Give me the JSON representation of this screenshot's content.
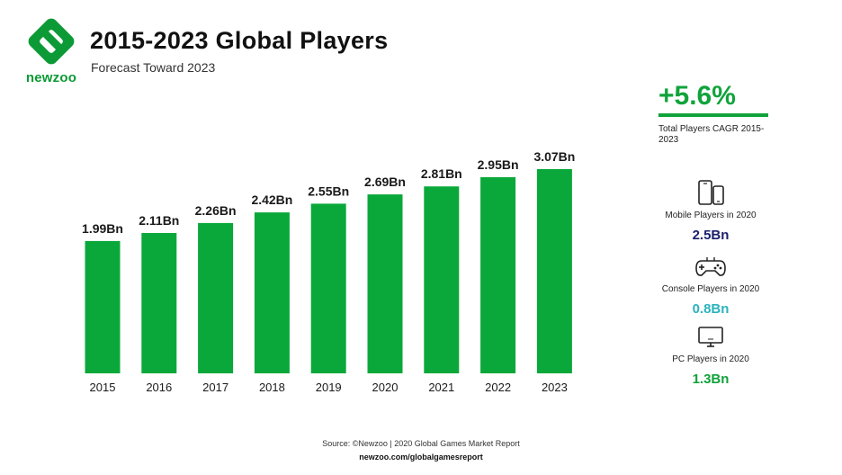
{
  "brand": {
    "name": "newzoo",
    "color": "#0c9a36"
  },
  "header": {
    "title": "2015-2023 Global Players",
    "subtitle": "Forecast Toward 2023"
  },
  "chart_data": {
    "type": "bar",
    "title": "2015-2023 Global Players",
    "subtitle": "Forecast Toward 2023",
    "categories": [
      "2015",
      "2016",
      "2017",
      "2018",
      "2019",
      "2020",
      "2021",
      "2022",
      "2023"
    ],
    "values": [
      1.99,
      2.11,
      2.26,
      2.42,
      2.55,
      2.69,
      2.81,
      2.95,
      3.07
    ],
    "value_labels": [
      "1.99Bn",
      "2.11Bn",
      "2.26Bn",
      "2.42Bn",
      "2.55Bn",
      "2.69Bn",
      "2.81Bn",
      "2.95Bn",
      "3.07Bn"
    ],
    "unit": "Bn",
    "xlabel": "",
    "ylabel": "",
    "ylim": [
      0,
      3.07
    ],
    "grid": false,
    "legend": "none",
    "bar_color": "#0aa83a"
  },
  "sidebar": {
    "cagr": {
      "value": "+5.6%",
      "label": "Total Players CAGR 2015-2023",
      "color": "#10a33b"
    },
    "stats": [
      {
        "icon": "mobile-phone-icon",
        "label": "Mobile Players in 2020",
        "value": "2.5Bn",
        "color": "#1b1f6b"
      },
      {
        "icon": "gamepad-icon",
        "label": "Console Players in 2020",
        "value": "0.8Bn",
        "color": "#2bb3bd"
      },
      {
        "icon": "pc-monitor-icon",
        "label": "PC Players in 2020",
        "value": "1.3Bn",
        "color": "#11a13a"
      }
    ]
  },
  "footer": {
    "source": "Source: ©Newzoo | 2020 Global Games Market Report",
    "url": "newzoo.com/globalgamesreport"
  }
}
